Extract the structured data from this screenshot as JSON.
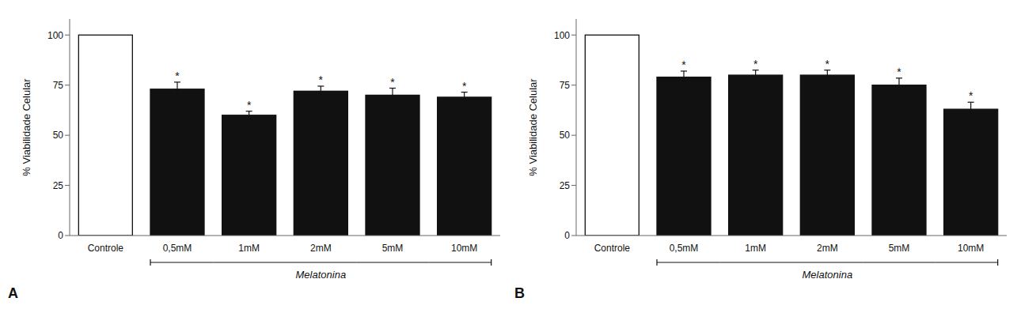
{
  "chart_data": [
    {
      "type": "bar",
      "title": "A",
      "categories": [
        "Controle",
        "0,5mM",
        "1mM",
        "2mM",
        "5mM",
        "10mM"
      ],
      "values": [
        100,
        73,
        60,
        72,
        70,
        69
      ],
      "errors": [
        0,
        3.5,
        2.0,
        2.5,
        3.5,
        2.5
      ],
      "colors": [
        "#ffffff",
        "#111111",
        "#111111",
        "#111111",
        "#111111",
        "#111111"
      ],
      "significance_marks": [
        null,
        "*",
        "*",
        "*",
        "*",
        "*"
      ],
      "ylabel": "% Viabilidade Celular",
      "annotations": [
        {
          "text": "Melatonina",
          "categories": [
            "0,5mM",
            "10mM"
          ]
        }
      ],
      "ylim": [
        0,
        108
      ],
      "yticks": [
        0,
        25,
        50,
        75,
        100
      ],
      "grid": false
    },
    {
      "type": "bar",
      "title": "B",
      "categories": [
        "Controle",
        "0,5mM",
        "1mM",
        "2mM",
        "5mM",
        "10mM"
      ],
      "values": [
        100,
        79,
        80,
        80,
        75,
        63
      ],
      "errors": [
        0,
        3.0,
        2.5,
        2.5,
        3.5,
        3.5
      ],
      "colors": [
        "#ffffff",
        "#111111",
        "#111111",
        "#111111",
        "#111111",
        "#111111"
      ],
      "significance_marks": [
        null,
        "*",
        "*",
        "*",
        "*",
        "*"
      ],
      "ylabel": "% Viabilidade Celular",
      "annotations": [
        {
          "text": "Melatonina",
          "categories": [
            "0,5mM",
            "10mM"
          ]
        }
      ],
      "ylim": [
        0,
        108
      ],
      "yticks": [
        0,
        25,
        50,
        75,
        100
      ],
      "grid": false
    }
  ]
}
